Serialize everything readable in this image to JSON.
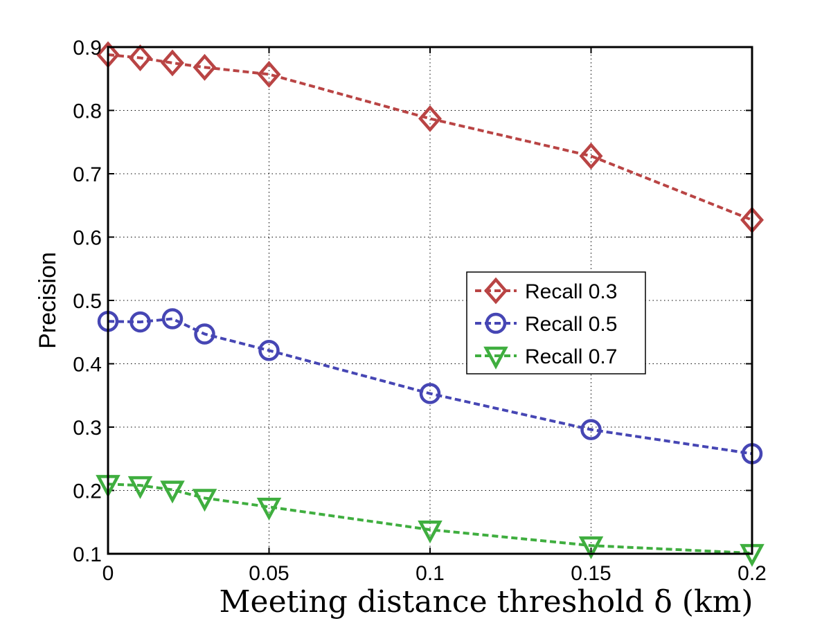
{
  "chart_data": {
    "type": "line",
    "title": "",
    "xlabel": "Meeting distance threshold δ (km)",
    "ylabel": "Precision",
    "xlim": [
      0,
      0.2
    ],
    "ylim": [
      0.1,
      0.9
    ],
    "xticks": [
      0,
      0.05,
      0.1,
      0.15,
      0.2
    ],
    "xtick_labels": [
      "0",
      "0.05",
      "0.1",
      "0.15",
      "0.2"
    ],
    "yticks": [
      0.1,
      0.2,
      0.3,
      0.4,
      0.5,
      0.6,
      0.7,
      0.8,
      0.9
    ],
    "ytick_labels": [
      "0.1",
      "0.2",
      "0.3",
      "0.4",
      "0.5",
      "0.6",
      "0.7",
      "0.8",
      "0.9"
    ],
    "grid": true,
    "legend_position": "center-right",
    "x": [
      0,
      0.01,
      0.02,
      0.03,
      0.05,
      0.1,
      0.15,
      0.2
    ],
    "series": [
      {
        "name": "Recall 0.3",
        "color": "#b94444",
        "marker": "diamond",
        "values": [
          0.888,
          0.883,
          0.875,
          0.868,
          0.857,
          0.787,
          0.728,
          0.627
        ]
      },
      {
        "name": "Recall 0.5",
        "color": "#4646b4",
        "marker": "circle",
        "values": [
          0.467,
          0.466,
          0.471,
          0.447,
          0.421,
          0.353,
          0.296,
          0.258
        ]
      },
      {
        "name": "Recall 0.7",
        "color": "#3fae3f",
        "marker": "triangle-down",
        "values": [
          0.21,
          0.208,
          0.201,
          0.188,
          0.174,
          0.138,
          0.113,
          0.101
        ]
      }
    ]
  }
}
